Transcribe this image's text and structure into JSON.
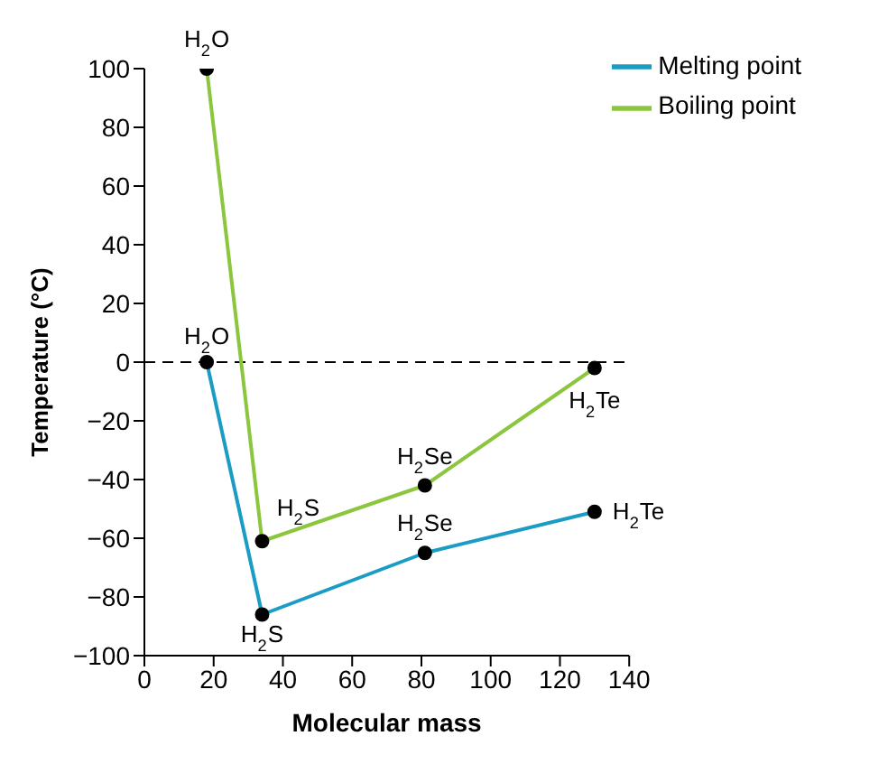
{
  "chart_data": {
    "type": "line",
    "xlabel": "Molecular mass",
    "ylabel": "Temperature (°C)",
    "series": [
      {
        "name": "Melting point",
        "color": "#1b9cc4",
        "x": [
          18,
          34,
          81,
          130
        ],
        "values": [
          0,
          -86,
          -65,
          -51
        ]
      },
      {
        "name": "Boiling point",
        "color": "#8cc63e",
        "x": [
          18,
          34,
          81,
          130
        ],
        "values": [
          100,
          -61,
          -42,
          -2
        ]
      }
    ],
    "xlim": [
      0,
      140
    ],
    "xticks": [
      0,
      20,
      40,
      60,
      80,
      100,
      120,
      140
    ],
    "ylim": [
      -100,
      100
    ],
    "yticks": [
      -100,
      -80,
      -60,
      -40,
      -20,
      0,
      20,
      40,
      60,
      80,
      100
    ],
    "ref_lines": [
      {
        "axis": "y",
        "value": 0,
        "color": "#000000",
        "line_style": "dashed"
      }
    ],
    "annotations": [
      {
        "text": "H$_{2}$O",
        "x": 18,
        "y": 100
      },
      {
        "text": "H$_{2}$O",
        "x": 18,
        "y": 0
      },
      {
        "text": "H$_{2}$S",
        "x": 34,
        "y": -61
      },
      {
        "text": "H$_{2}$S",
        "x": 34,
        "y": -86
      },
      {
        "text": "H$_{2}$Se",
        "x": 81,
        "y": -42
      },
      {
        "text": "H$_{2}$Se",
        "x": 81,
        "y": -65
      },
      {
        "text": "H$_{2}$Te",
        "x": 130,
        "y": -2
      },
      {
        "text": "H$_{2}$Te",
        "x": 130,
        "y": -51
      }
    ],
    "marker": "circle",
    "line_style": "solid",
    "legend": "top right"
  }
}
